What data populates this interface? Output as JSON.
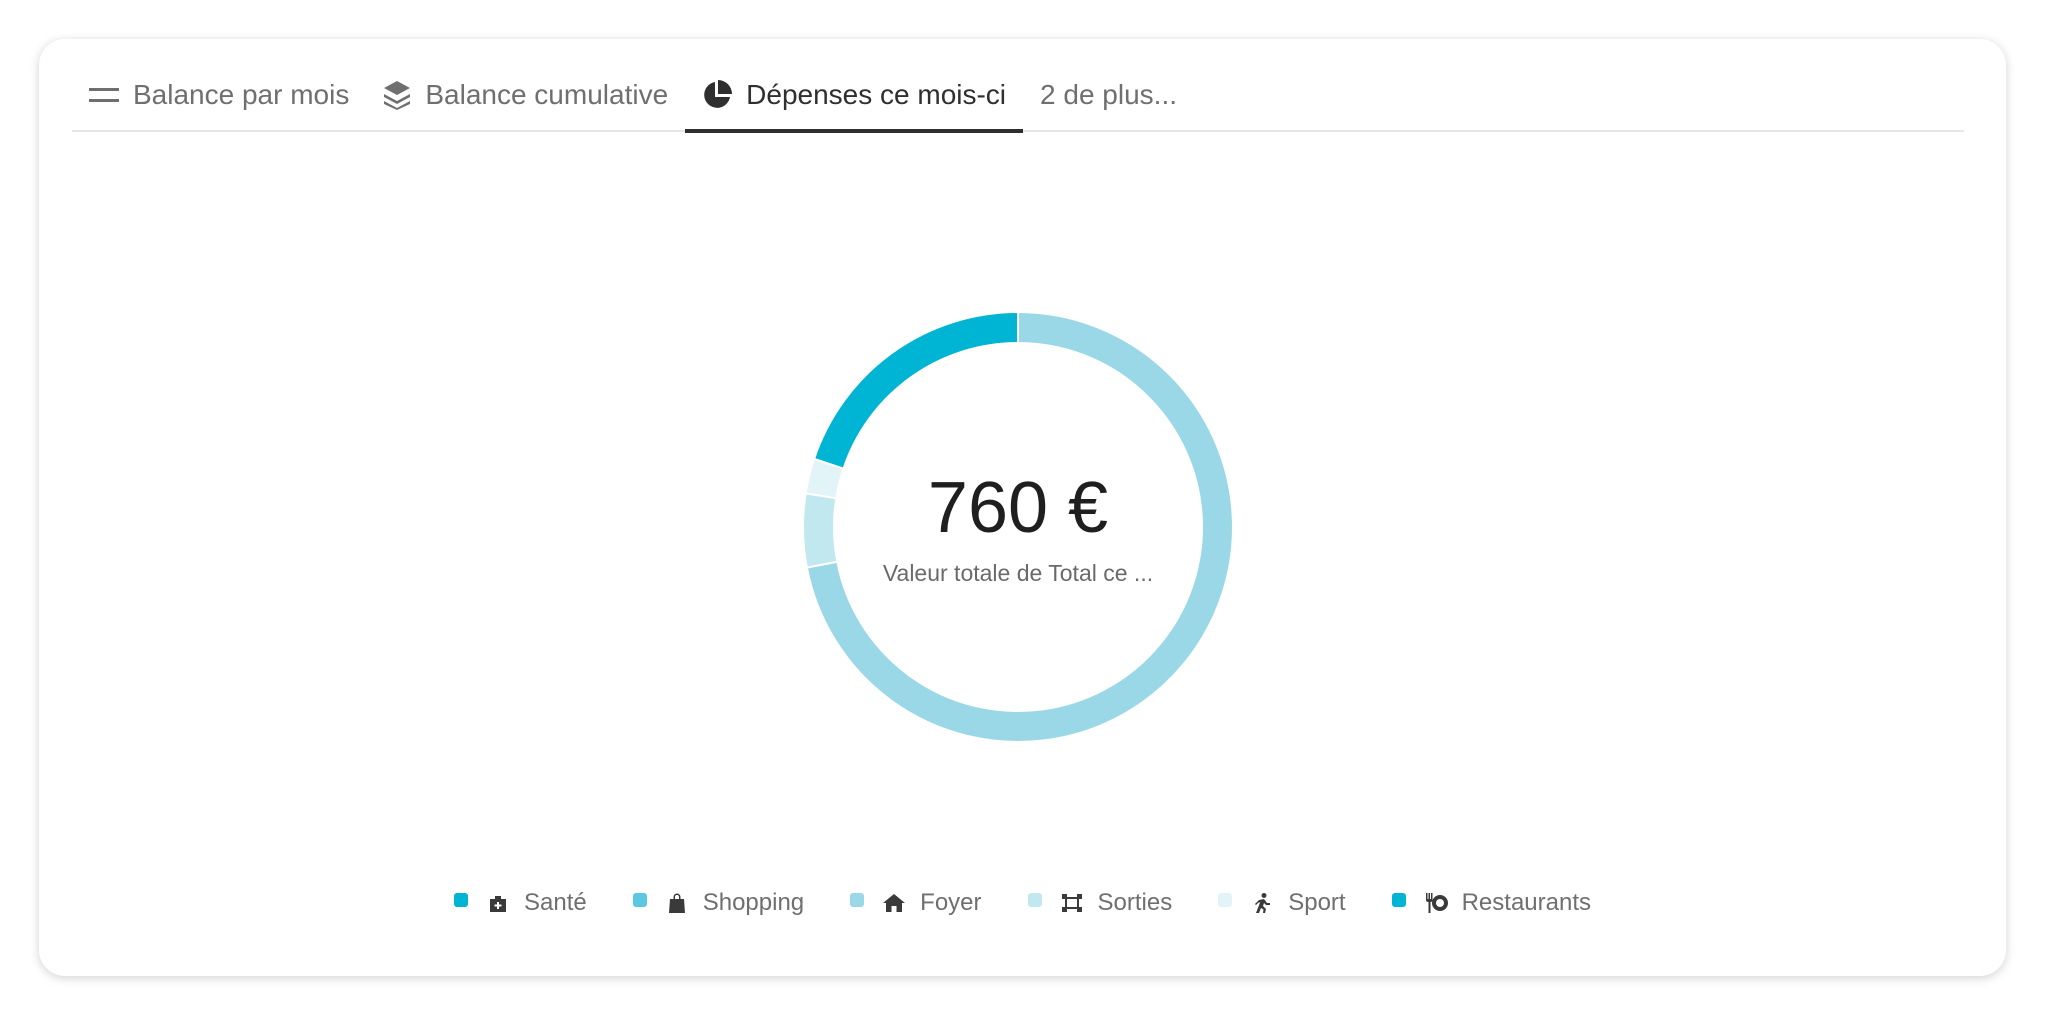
{
  "tabs": [
    "Balance par mois",
    "Balance cumulative",
    "Dépenses ce mois-ci",
    "2 de plus..."
  ],
  "chart_data": {
    "type": "donut",
    "center_value": "760 €",
    "center_label": "Valeur totale de Total ce ...",
    "categories": [
      "Santé",
      "Shopping",
      "Foyer",
      "Sorties",
      "Sport",
      "Restaurants"
    ],
    "values": [
      0,
      0,
      547,
      42,
      20,
      151
    ],
    "colors": [
      "#00b4d4",
      "#5bc8e0",
      "#9ad8e8",
      "#c2e8ef",
      "#e2f4f8",
      "#00b4d4"
    ]
  }
}
